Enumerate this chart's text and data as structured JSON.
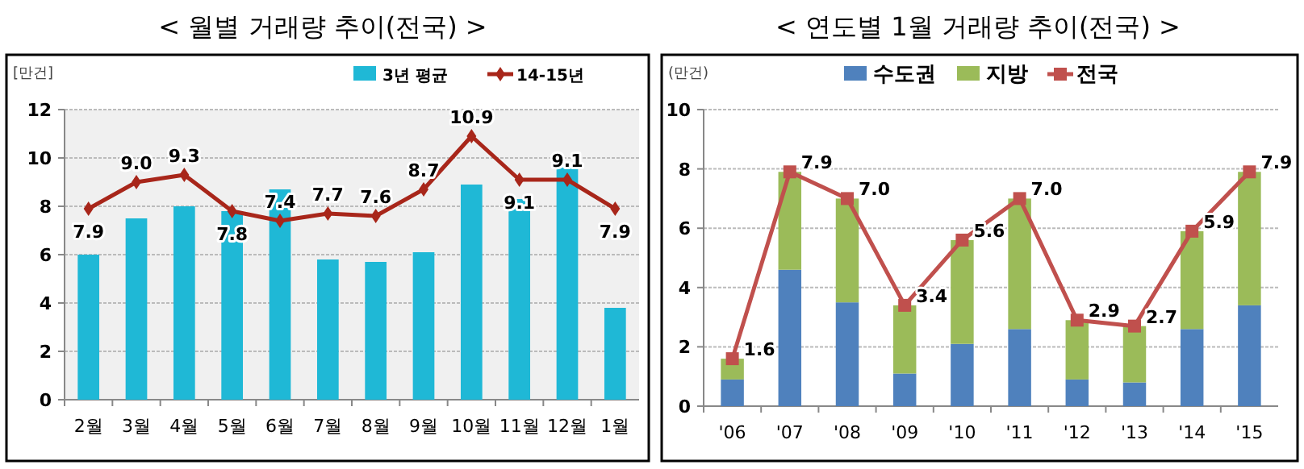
{
  "chart_data": [
    {
      "type": "bar",
      "title": "< 월별 거래량 추이(전국) >",
      "ylabel": "[만건]",
      "categories": [
        "2월",
        "3월",
        "4월",
        "5월",
        "6월",
        "7월",
        "8월",
        "9월",
        "10월",
        "11월",
        "12월",
        "1월"
      ],
      "ylim": [
        0,
        12
      ],
      "yticks": [
        0,
        2,
        4,
        6,
        8,
        10,
        12
      ],
      "grid": "y",
      "legend": "top right",
      "marker": "diamond",
      "series": [
        {
          "name": "3년 평균",
          "color": "#1fb8d6",
          "values": [
            6.0,
            7.5,
            8.0,
            7.8,
            8.7,
            5.8,
            5.7,
            6.1,
            8.9,
            8.3,
            9.6,
            3.8
          ]
        },
        {
          "name": "14-15년",
          "type": "line",
          "color": "#a8261a",
          "values": [
            7.9,
            9.0,
            9.3,
            7.8,
            7.4,
            7.7,
            7.6,
            8.7,
            10.9,
            9.1,
            9.1,
            7.9
          ],
          "value_labels": [
            "7.9",
            "9.0",
            "9.3",
            "7.8",
            "7.4",
            "7.7",
            "7.6",
            "8.7",
            "10.9",
            "9.1",
            "9.1",
            "7.9"
          ]
        }
      ]
    },
    {
      "type": "bar",
      "title": "< 연도별 1월 거래량 추이(전국) >",
      "ylabel": "(만건)",
      "categories": [
        "'06",
        "'07",
        "'08",
        "'09",
        "'10",
        "'11",
        "'12",
        "'13",
        "'14",
        "'15"
      ],
      "ylim": [
        0,
        10
      ],
      "yticks": [
        0,
        2,
        4,
        6,
        8,
        10
      ],
      "grid": "y",
      "legend": "top",
      "marker": "square",
      "stacked": true,
      "series": [
        {
          "name": "수도권",
          "color": "#4f81bd",
          "values": [
            0.9,
            4.6,
            3.5,
            1.1,
            2.1,
            2.6,
            0.9,
            0.8,
            2.6,
            3.4
          ]
        },
        {
          "name": "지방",
          "color": "#9bbb59",
          "values": [
            0.7,
            3.3,
            3.5,
            2.3,
            3.5,
            4.4,
            2.0,
            1.9,
            3.3,
            4.5
          ]
        },
        {
          "name": "전국",
          "type": "line",
          "color": "#c0504d",
          "values": [
            1.6,
            7.9,
            7.0,
            3.4,
            5.6,
            7.0,
            2.9,
            2.7,
            5.9,
            7.9
          ],
          "value_labels": [
            "1.6",
            "7.9",
            "7.0",
            "3.4",
            "5.6",
            "7.0",
            "2.9",
            "2.7",
            "5.9",
            "7.9"
          ]
        }
      ]
    }
  ]
}
